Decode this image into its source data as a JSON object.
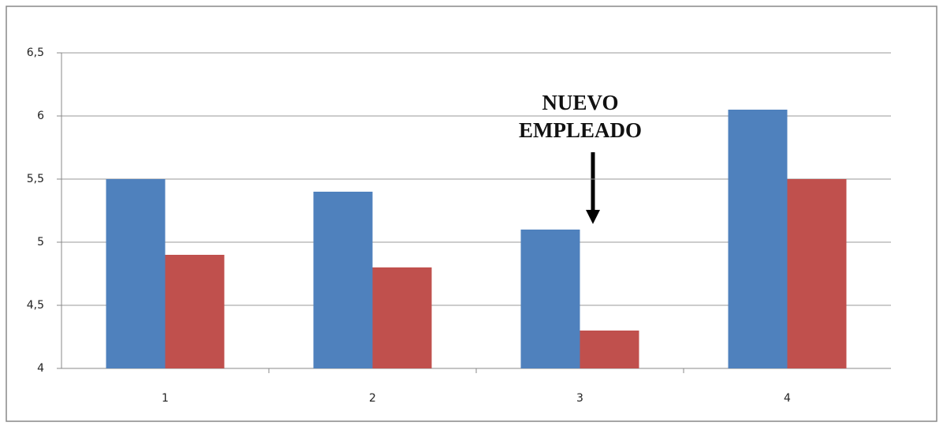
{
  "chart_data": {
    "type": "bar",
    "categories": [
      "1",
      "2",
      "3",
      "4"
    ],
    "series": [
      {
        "color": "#4f81bd",
        "values": [
          5.5,
          5.4,
          5.1,
          6.05
        ]
      },
      {
        "color": "#c0504d",
        "values": [
          4.9,
          4.8,
          4.3,
          5.5
        ]
      }
    ],
    "ylim": [
      4,
      6.5
    ],
    "yticks": [
      4,
      {
        "value": 4.5,
        "label": "4,5"
      },
      5,
      {
        "value": 5.5,
        "label": "5,5"
      },
      6,
      {
        "value": 6.5,
        "label": "6,5"
      }
    ],
    "grid": true,
    "annotation": [
      "NUEVO",
      "EMPLEADO"
    ]
  }
}
